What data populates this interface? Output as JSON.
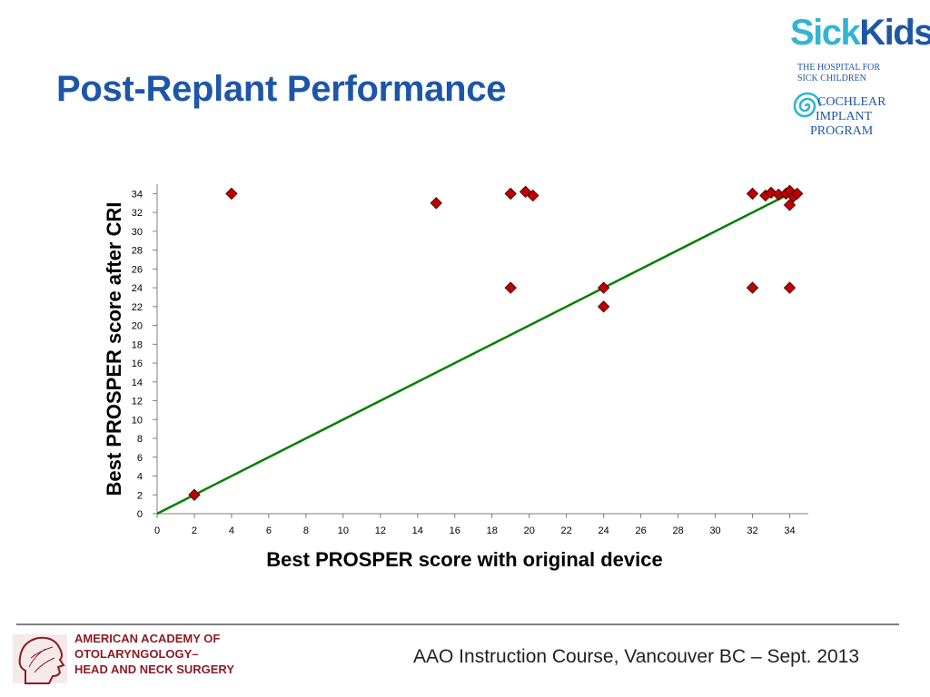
{
  "slide": {
    "title": "Post-Replant Performance",
    "footer": "AAO Instruction Course, Vancouver BC – Sept. 2013"
  },
  "logos": {
    "sickkids": {
      "brand_part1": "Sick",
      "brand_part2": "Kids",
      "registered": "®",
      "subtitle_line1": "THE HOSPITAL FOR",
      "subtitle_line2": "SICK CHILDREN",
      "program_line1": "COCHLEAR",
      "program_line2": "IMPLANT",
      "program_line3": "PROGRAM"
    },
    "aao": {
      "line1": "AMERICAN ACADEMY OF",
      "line2": "OTOLARYNGOLOGY–",
      "line3": "HEAD AND NECK SURGERY"
    }
  },
  "colors": {
    "title": "#1d56a6",
    "marker_fill": "#c00000",
    "marker_stroke": "#5a0000",
    "trend_line": "#008000",
    "axis": "#7f7f7f",
    "aao_red": "#8c1c24"
  },
  "chart_data": {
    "type": "scatter",
    "xlabel": "Best PROSPER score with original device",
    "ylabel": "Best PROSPER score after CRI",
    "xlim": [
      0,
      35
    ],
    "ylim": [
      0,
      35
    ],
    "xticks": [
      0,
      2,
      4,
      6,
      8,
      10,
      12,
      14,
      16,
      18,
      20,
      22,
      24,
      26,
      28,
      30,
      32,
      34
    ],
    "yticks": [
      0,
      2,
      4,
      6,
      8,
      10,
      12,
      14,
      16,
      18,
      20,
      22,
      24,
      26,
      28,
      30,
      32,
      34
    ],
    "grid": false,
    "marker": "diamond",
    "points": [
      {
        "x": 2,
        "y": 2
      },
      {
        "x": 4,
        "y": 34
      },
      {
        "x": 15,
        "y": 33
      },
      {
        "x": 19,
        "y": 34
      },
      {
        "x": 19,
        "y": 24
      },
      {
        "x": 19.8,
        "y": 34.2
      },
      {
        "x": 20.2,
        "y": 33.8
      },
      {
        "x": 24,
        "y": 24
      },
      {
        "x": 24,
        "y": 22
      },
      {
        "x": 32,
        "y": 34
      },
      {
        "x": 32,
        "y": 24
      },
      {
        "x": 32.7,
        "y": 33.8
      },
      {
        "x": 33,
        "y": 34.1
      },
      {
        "x": 33.4,
        "y": 33.9
      },
      {
        "x": 33.8,
        "y": 34
      },
      {
        "x": 34,
        "y": 34.3
      },
      {
        "x": 34,
        "y": 32.8
      },
      {
        "x": 34.2,
        "y": 33.7
      },
      {
        "x": 34.4,
        "y": 34
      },
      {
        "x": 34,
        "y": 24
      }
    ],
    "trend_line": {
      "x": [
        0,
        34.4
      ],
      "y": [
        0,
        34.4
      ]
    }
  }
}
